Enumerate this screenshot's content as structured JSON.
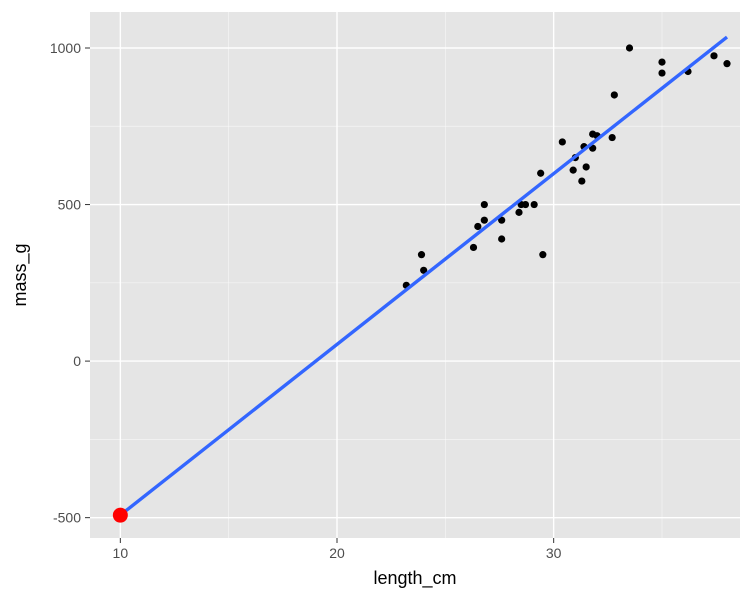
{
  "chart_data": {
    "type": "scatter",
    "title": "",
    "xlabel": "length_cm",
    "ylabel": "mass_g",
    "xlim": [
      8.6,
      38.6
    ],
    "ylim": [
      -565,
      1115
    ],
    "grid": true,
    "x_ticks": [
      {
        "value": 10,
        "label": "10"
      },
      {
        "value": 20,
        "label": "20"
      },
      {
        "value": 30,
        "label": "30"
      }
    ],
    "x_minor_ticks": [
      15,
      25,
      35
    ],
    "y_ticks": [
      {
        "value": -500,
        "label": "-500"
      },
      {
        "value": 0,
        "label": "0"
      },
      {
        "value": 500,
        "label": "500"
      },
      {
        "value": 1000,
        "label": "1000"
      }
    ],
    "y_minor_ticks": [
      -250,
      250,
      750
    ],
    "series": [
      {
        "kind": "points",
        "color": "#000000",
        "points": [
          [
            23.2,
            242
          ],
          [
            23.9,
            340
          ],
          [
            24.0,
            290
          ],
          [
            26.3,
            363
          ],
          [
            26.5,
            430
          ],
          [
            26.8,
            450
          ],
          [
            26.8,
            500
          ],
          [
            27.6,
            390
          ],
          [
            27.6,
            450
          ],
          [
            28.4,
            475
          ],
          [
            28.5,
            500
          ],
          [
            28.7,
            500
          ],
          [
            29.1,
            500
          ],
          [
            29.4,
            600
          ],
          [
            29.5,
            340
          ],
          [
            30.4,
            700
          ],
          [
            30.9,
            610
          ],
          [
            31.0,
            650
          ],
          [
            31.3,
            575
          ],
          [
            31.4,
            685
          ],
          [
            31.5,
            620
          ],
          [
            31.8,
            680
          ],
          [
            31.8,
            725
          ],
          [
            32.0,
            720
          ],
          [
            32.7,
            714
          ],
          [
            32.8,
            850
          ],
          [
            33.5,
            1000
          ],
          [
            35.0,
            920
          ],
          [
            35.0,
            955
          ],
          [
            36.2,
            925
          ],
          [
            37.4,
            975
          ],
          [
            38.0,
            950
          ]
        ]
      },
      {
        "kind": "regression_line",
        "color": "#3366FF",
        "points": [
          [
            10,
            -492
          ],
          [
            38,
            1035
          ]
        ]
      },
      {
        "kind": "highlight_point",
        "color": "#FF0000",
        "points": [
          [
            10,
            -492
          ]
        ]
      }
    ]
  },
  "colors": {
    "panel_background": "#E5E5E5",
    "grid_major": "#FFFFFF",
    "tick_color": "#333333"
  }
}
